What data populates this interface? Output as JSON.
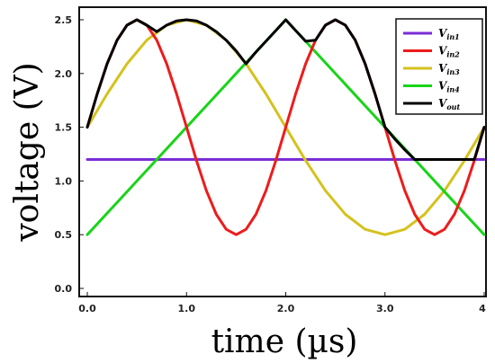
{
  "chart_data": {
    "type": "line",
    "xlabel": "time (µs)",
    "ylabel": "voltage (V)",
    "xlim": [
      0,
      4
    ],
    "ylim": [
      0,
      2.6
    ],
    "x_ticks": [
      "0.0",
      "1.0",
      "2.0",
      "3.0",
      "4"
    ],
    "y_ticks": [
      "0.0",
      "0.5",
      "1.0",
      "1.5",
      "2.0",
      "2.5"
    ],
    "grid": false,
    "legend_position": "top-right",
    "series": [
      {
        "name": "V_in1",
        "label_main": "V",
        "label_sub": "in1",
        "color": "#7a2cd6",
        "x": [
          0,
          4
        ],
        "y": [
          1.2,
          1.2
        ]
      },
      {
        "name": "V_in2",
        "label_main": "V",
        "label_sub": "in2",
        "color": "#ee1b1b",
        "x": [
          0,
          0.1,
          0.2,
          0.3,
          0.4,
          0.5,
          0.6,
          0.7,
          0.8,
          0.9,
          1.0,
          1.1,
          1.2,
          1.3,
          1.4,
          1.5,
          1.6,
          1.7,
          1.8,
          1.9,
          2.0,
          2.1,
          2.2,
          2.3,
          2.4,
          2.5,
          2.6,
          2.7,
          2.8,
          2.9,
          3.0,
          3.1,
          3.2,
          3.3,
          3.4,
          3.5,
          3.6,
          3.7,
          3.8,
          3.9,
          4.0
        ],
        "y": [
          1.5,
          1.81,
          2.09,
          2.31,
          2.45,
          2.5,
          2.45,
          2.31,
          2.09,
          1.81,
          1.5,
          1.19,
          0.91,
          0.69,
          0.55,
          0.5,
          0.55,
          0.69,
          0.91,
          1.19,
          1.5,
          1.81,
          2.09,
          2.31,
          2.45,
          2.5,
          2.45,
          2.31,
          2.09,
          1.81,
          1.5,
          1.19,
          0.91,
          0.69,
          0.55,
          0.5,
          0.55,
          0.69,
          0.91,
          1.19,
          1.5
        ]
      },
      {
        "name": "V_in3",
        "label_main": "V",
        "label_sub": "in3",
        "color": "#d4c21e",
        "x": [
          0,
          0.2,
          0.4,
          0.6,
          0.8,
          1.0,
          1.2,
          1.4,
          1.6,
          1.8,
          2.0,
          2.2,
          2.4,
          2.6,
          2.8,
          3.0,
          3.2,
          3.4,
          3.6,
          3.8,
          4.0
        ],
        "y": [
          1.5,
          1.81,
          2.09,
          2.31,
          2.45,
          2.5,
          2.45,
          2.31,
          2.09,
          1.81,
          1.5,
          1.19,
          0.91,
          0.69,
          0.55,
          0.5,
          0.55,
          0.69,
          0.91,
          1.19,
          1.5
        ]
      },
      {
        "name": "V_in4",
        "label_main": "V",
        "label_sub": "in4",
        "color": "#18d418",
        "x": [
          0,
          2,
          4
        ],
        "y": [
          0.5,
          2.5,
          0.5
        ]
      },
      {
        "name": "V_out",
        "label_main": "V",
        "label_sub": "out",
        "color": "#000000",
        "x": [
          0,
          0.1,
          0.2,
          0.3,
          0.4,
          0.5,
          0.6,
          0.7,
          0.8,
          0.9,
          1.0,
          1.1,
          1.2,
          1.3,
          1.4,
          1.5,
          1.6,
          1.7,
          1.8,
          1.9,
          2.0,
          2.1,
          2.2,
          2.3,
          2.4,
          2.5,
          2.6,
          2.7,
          2.8,
          2.9,
          3.0,
          3.1,
          3.2,
          3.3,
          3.4,
          3.5,
          3.6,
          3.7,
          3.8,
          3.9,
          4.0
        ],
        "y": [
          1.5,
          1.81,
          2.09,
          2.31,
          2.45,
          2.5,
          2.45,
          2.39,
          2.45,
          2.49,
          2.5,
          2.49,
          2.45,
          2.39,
          2.31,
          2.21,
          2.09,
          2.2,
          2.3,
          2.4,
          2.5,
          2.4,
          2.3,
          2.31,
          2.45,
          2.5,
          2.45,
          2.31,
          2.09,
          1.81,
          1.5,
          1.39,
          1.29,
          1.2,
          1.2,
          1.2,
          1.2,
          1.2,
          1.2,
          1.2,
          1.5
        ]
      }
    ]
  }
}
